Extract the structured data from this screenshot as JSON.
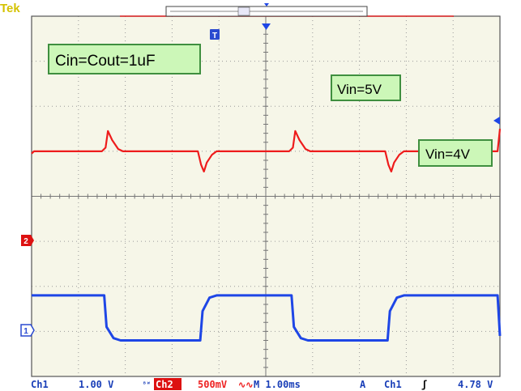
{
  "header": {
    "brand": "Tek",
    "trigger_marker": "T"
  },
  "annotations": [
    {
      "id": "cap",
      "text": "Cin=Cout=1uF"
    },
    {
      "id": "vin_high",
      "text": "Vin=5V"
    },
    {
      "id": "vin_low",
      "text": "Vin=4V"
    }
  ],
  "channel_markers": {
    "ch2": "2",
    "ch1": "1"
  },
  "status_bar": {
    "ch1_label": "Ch1",
    "ch1_scale": "1.00 V",
    "bw_symbol": "ᴮᵂ",
    "ch2_label": "Ch2",
    "ch2_scale": "500mV",
    "coupling_symbol": "∿∿",
    "timebase": "M 1.00ms",
    "trigger_mode": "A",
    "trigger_source": "Ch1",
    "trigger_slope": "ʃ",
    "trigger_level": "4.78 V"
  },
  "colors": {
    "grid_bg": "#f6f6e8",
    "grid_line": "#9a9a9a",
    "ch1": "#1e46e6",
    "ch2": "#ee1c1c",
    "label_bg": "#ccf7b8",
    "label_border": "#3f8f3f",
    "status_text": "#1a3fb8",
    "ch2_badge": "#dd1111"
  },
  "chart_data": {
    "type": "line",
    "x_divisions": 10,
    "y_divisions": 8,
    "series": [
      {
        "name": "Ch1",
        "points": [
          [
            0,
            -2.2
          ],
          [
            1.55,
            -2.2
          ],
          [
            1.6,
            -2.9
          ],
          [
            1.75,
            -3.15
          ],
          [
            1.9,
            -3.2
          ],
          [
            3.6,
            -3.2
          ],
          [
            3.65,
            -2.55
          ],
          [
            3.8,
            -2.25
          ],
          [
            3.95,
            -2.2
          ],
          [
            5.55,
            -2.2
          ],
          [
            5.6,
            -2.9
          ],
          [
            5.75,
            -3.15
          ],
          [
            5.9,
            -3.2
          ],
          [
            7.6,
            -3.2
          ],
          [
            7.65,
            -2.55
          ],
          [
            7.8,
            -2.25
          ],
          [
            7.95,
            -2.2
          ],
          [
            9.95,
            -2.2
          ],
          [
            10,
            -3.1
          ]
        ]
      },
      {
        "name": "Ch2",
        "points": [
          [
            0,
            0.95
          ],
          [
            0.05,
            1.0
          ],
          [
            1.5,
            1.0
          ],
          [
            1.58,
            1.08
          ],
          [
            1.63,
            1.45
          ],
          [
            1.72,
            1.25
          ],
          [
            1.85,
            1.05
          ],
          [
            1.95,
            1.0
          ],
          [
            3.55,
            1.0
          ],
          [
            3.62,
            0.7
          ],
          [
            3.68,
            0.55
          ],
          [
            3.74,
            0.75
          ],
          [
            3.85,
            0.92
          ],
          [
            3.95,
            1.0
          ],
          [
            5.5,
            1.0
          ],
          [
            5.58,
            1.08
          ],
          [
            5.63,
            1.45
          ],
          [
            5.72,
            1.25
          ],
          [
            5.85,
            1.05
          ],
          [
            5.95,
            1.0
          ],
          [
            7.55,
            1.0
          ],
          [
            7.62,
            0.7
          ],
          [
            7.68,
            0.55
          ],
          [
            7.74,
            0.75
          ],
          [
            7.85,
            0.92
          ],
          [
            7.95,
            1.0
          ],
          [
            9.95,
            1.0
          ],
          [
            10,
            1.5
          ]
        ]
      }
    ]
  }
}
